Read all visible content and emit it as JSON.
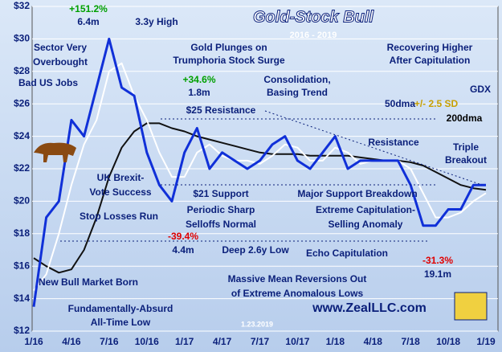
{
  "chart_data": {
    "type": "line",
    "title": "Gold-Stock Bull",
    "subtitle": "2016 - 2019",
    "categories": [
      "1/16",
      null,
      null,
      "4/16",
      null,
      null,
      "7/16",
      null,
      null,
      "10/16",
      null,
      null,
      "1/17",
      null,
      null,
      "4/17",
      null,
      null,
      "7/17",
      null,
      null,
      "10/17",
      null,
      null,
      "1/18",
      null,
      null,
      "4/18",
      null,
      null,
      "7/18",
      null,
      null,
      "10/18",
      null,
      null,
      "1/19"
    ],
    "series": [
      {
        "name": "GDX",
        "color": "#1030d8",
        "values": [
          13.5,
          19,
          20,
          25,
          24,
          27,
          30,
          27,
          26.5,
          23,
          21,
          20,
          23,
          24.5,
          22,
          23,
          22.5,
          22,
          22.5,
          23.5,
          24,
          22.5,
          22,
          23,
          24,
          22,
          22.5,
          22.5,
          22.5,
          22.5,
          21,
          18.5,
          18.5,
          19.5,
          19.5,
          21,
          21
        ]
      },
      {
        "name": "50dma",
        "color": "#ffffff",
        "values": [
          14.5,
          15.5,
          18,
          21,
          23.5,
          25,
          28,
          28.5,
          26.5,
          25,
          23,
          21.5,
          21.5,
          23,
          23.5,
          22.8,
          22.5,
          22.5,
          22.3,
          22.8,
          23.5,
          23.3,
          22.5,
          22.5,
          23.3,
          23,
          22.3,
          22.5,
          22.5,
          22.5,
          22,
          20.5,
          19,
          19,
          19.3,
          20,
          20.5
        ]
      },
      {
        "name": "200dma",
        "color": "#111111",
        "values": [
          16.5,
          16,
          15.6,
          15.8,
          17,
          19,
          21.5,
          23.3,
          24.3,
          24.8,
          24.8,
          24.5,
          24.3,
          24,
          23.8,
          23.6,
          23.4,
          23.2,
          23,
          22.9,
          22.9,
          22.9,
          22.8,
          22.8,
          22.8,
          22.8,
          22.7,
          22.6,
          22.5,
          22.5,
          22.4,
          22.2,
          21.8,
          21.4,
          21,
          20.8,
          20.7
        ]
      }
    ],
    "ylim": [
      12,
      32
    ],
    "yticks": [
      {
        "value": 12,
        "label": "$12"
      },
      {
        "value": 14,
        "label": "$14"
      },
      {
        "value": 16,
        "label": "$16"
      },
      {
        "value": 18,
        "label": "$18"
      },
      {
        "value": 20,
        "label": "$20"
      },
      {
        "value": 22,
        "label": "$22"
      },
      {
        "value": 24,
        "label": "$24"
      },
      {
        "value": 26,
        "label": "$26"
      },
      {
        "value": 28,
        "label": "$28"
      },
      {
        "value": 30,
        "label": "$30"
      },
      {
        "value": 32,
        "label": "$32"
      }
    ],
    "grid": true,
    "annotations": [
      {
        "text": "+151.2%",
        "color": "#00a000"
      },
      {
        "text": "6.4m",
        "color": "#0a1f7a"
      },
      {
        "text": "3.3y High",
        "color": "#0a1f7a"
      },
      {
        "text": "Sector Very",
        "color": "#0a1f7a"
      },
      {
        "text": "Overbought",
        "color": "#0a1f7a"
      },
      {
        "text": "Gold Plunges on",
        "color": "#0a1f7a"
      },
      {
        "text": "Trumphoria Stock Surge",
        "color": "#0a1f7a"
      },
      {
        "text": "Recovering Higher",
        "color": "#0a1f7a"
      },
      {
        "text": "After Capitulation",
        "color": "#0a1f7a"
      },
      {
        "text": "Bad US Jobs",
        "color": "#0a1f7a"
      },
      {
        "text": "+34.6%",
        "color": "#00a000"
      },
      {
        "text": "1.8m",
        "color": "#0a1f7a"
      },
      {
        "text": "Consolidation,",
        "color": "#0a1f7a"
      },
      {
        "text": "Basing Trend",
        "color": "#0a1f7a"
      },
      {
        "text": "+/- 2.5 SD",
        "color": "#c8a000"
      },
      {
        "text": "$25 Resistance",
        "color": "#0a1f7a"
      },
      {
        "text": "Resistance",
        "color": "#0a1f7a"
      },
      {
        "text": "Triple",
        "color": "#0a1f7a"
      },
      {
        "text": "Breakout",
        "color": "#0a1f7a"
      },
      {
        "text": "UK Brexit-",
        "color": "#0a1f7a"
      },
      {
        "text": "Vote Success",
        "color": "#0a1f7a"
      },
      {
        "text": "$21 Support",
        "color": "#0a1f7a"
      },
      {
        "text": "Major Support Breakdown",
        "color": "#0a1f7a"
      },
      {
        "text": "Stop Losses Run",
        "color": "#0a1f7a"
      },
      {
        "text": "Periodic Sharp",
        "color": "#0a1f7a"
      },
      {
        "text": "Selloffs Normal",
        "color": "#0a1f7a"
      },
      {
        "text": "Extreme Capitulation-",
        "color": "#0a1f7a"
      },
      {
        "text": "Selling Anomaly",
        "color": "#0a1f7a"
      },
      {
        "text": "-39.4%",
        "color": "#e00000"
      },
      {
        "text": "4.4m",
        "color": "#0a1f7a"
      },
      {
        "text": "Deep 2.6y Low",
        "color": "#0a1f7a"
      },
      {
        "text": "Echo Capitulation",
        "color": "#0a1f7a"
      },
      {
        "text": "-31.3%",
        "color": "#e00000"
      },
      {
        "text": "19.1m",
        "color": "#0a1f7a"
      },
      {
        "text": "New Bull Market Born",
        "color": "#0a1f7a"
      },
      {
        "text": "Massive Mean Reversions Out",
        "color": "#0a1f7a"
      },
      {
        "text": "of Extreme Anomalous Lows",
        "color": "#0a1f7a"
      },
      {
        "text": "Fundamentally-Absurd",
        "color": "#0a1f7a"
      },
      {
        "text": "All-Time Low",
        "color": "#0a1f7a"
      },
      {
        "text": "1.23.2019",
        "color": "#ffffff"
      },
      {
        "text": "www.ZealLLC.com",
        "color": "#0a1f7a"
      }
    ]
  }
}
